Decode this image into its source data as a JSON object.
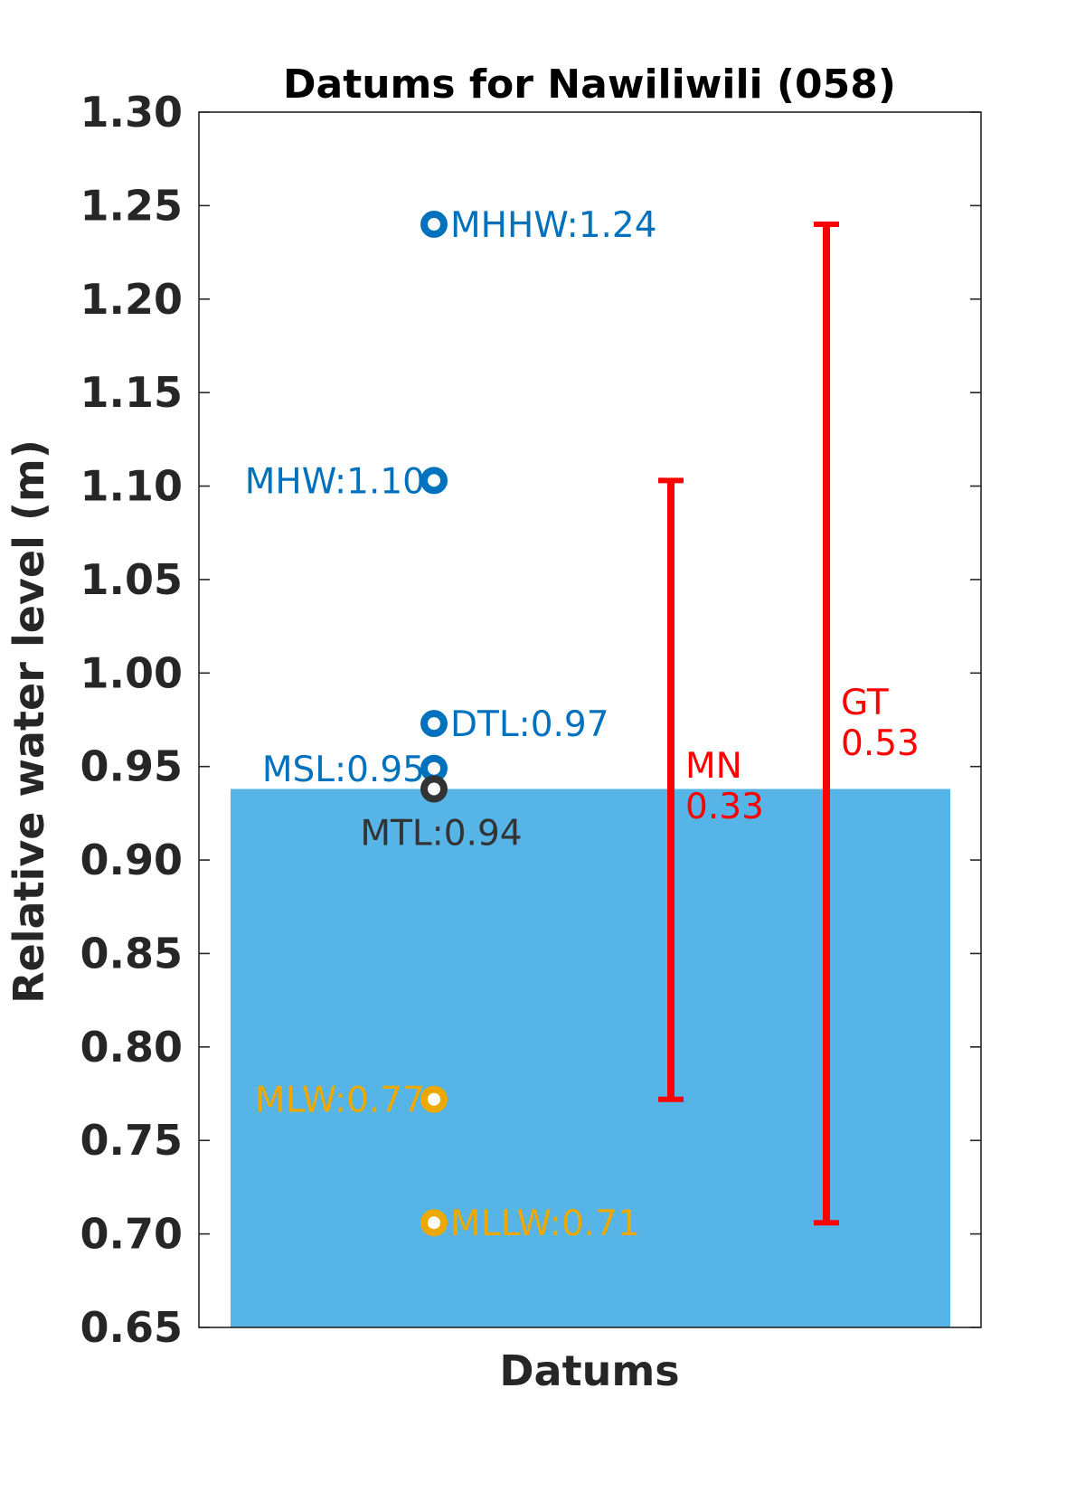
{
  "chart_data": {
    "type": "scatter",
    "title": "Datums for Nawiliwili (058)",
    "xlabel": "Datums",
    "ylabel": "Relative water level (m)",
    "ylim": [
      0.65,
      1.3
    ],
    "yticks": [
      "0.65",
      "0.70",
      "0.75",
      "0.80",
      "0.85",
      "0.90",
      "0.95",
      "1.00",
      "1.05",
      "1.10",
      "1.15",
      "1.20",
      "1.25",
      "1.30"
    ],
    "grid": false,
    "water_fill": {
      "value": 0.938,
      "color": "#56B4E6"
    },
    "datums": [
      {
        "name": "MHHW",
        "value": 1.24,
        "label": "MHHW:1.24",
        "color": "#0072BD",
        "label_side": "right"
      },
      {
        "name": "MHW",
        "value": 1.103,
        "label": "MHW:1.10",
        "color": "#0072BD",
        "label_side": "left"
      },
      {
        "name": "DTL",
        "value": 0.973,
        "label": "DTL:0.97",
        "color": "#0072BD",
        "label_side": "right"
      },
      {
        "name": "MSL",
        "value": 0.949,
        "label": "MSL:0.95",
        "color": "#0072BD",
        "label_side": "left"
      },
      {
        "name": "MTL",
        "value": 0.938,
        "label": "MTL:0.94",
        "color": "#333333",
        "label_side": "below"
      },
      {
        "name": "MLW",
        "value": 0.772,
        "label": "MLW:0.77",
        "color": "#EDA900",
        "label_side": "left"
      },
      {
        "name": "MLLW",
        "value": 0.706,
        "label": "MLLW:0.71",
        "color": "#EDA900",
        "label_side": "right"
      }
    ],
    "ranges": [
      {
        "name": "MN",
        "label_lines": [
          "MN",
          "0.33"
        ],
        "low": 0.772,
        "high": 1.103,
        "color": "#FF0000"
      },
      {
        "name": "GT",
        "label_lines": [
          "GT",
          "0.53"
        ],
        "low": 0.706,
        "high": 1.24,
        "color": "#FF0000"
      }
    ]
  }
}
